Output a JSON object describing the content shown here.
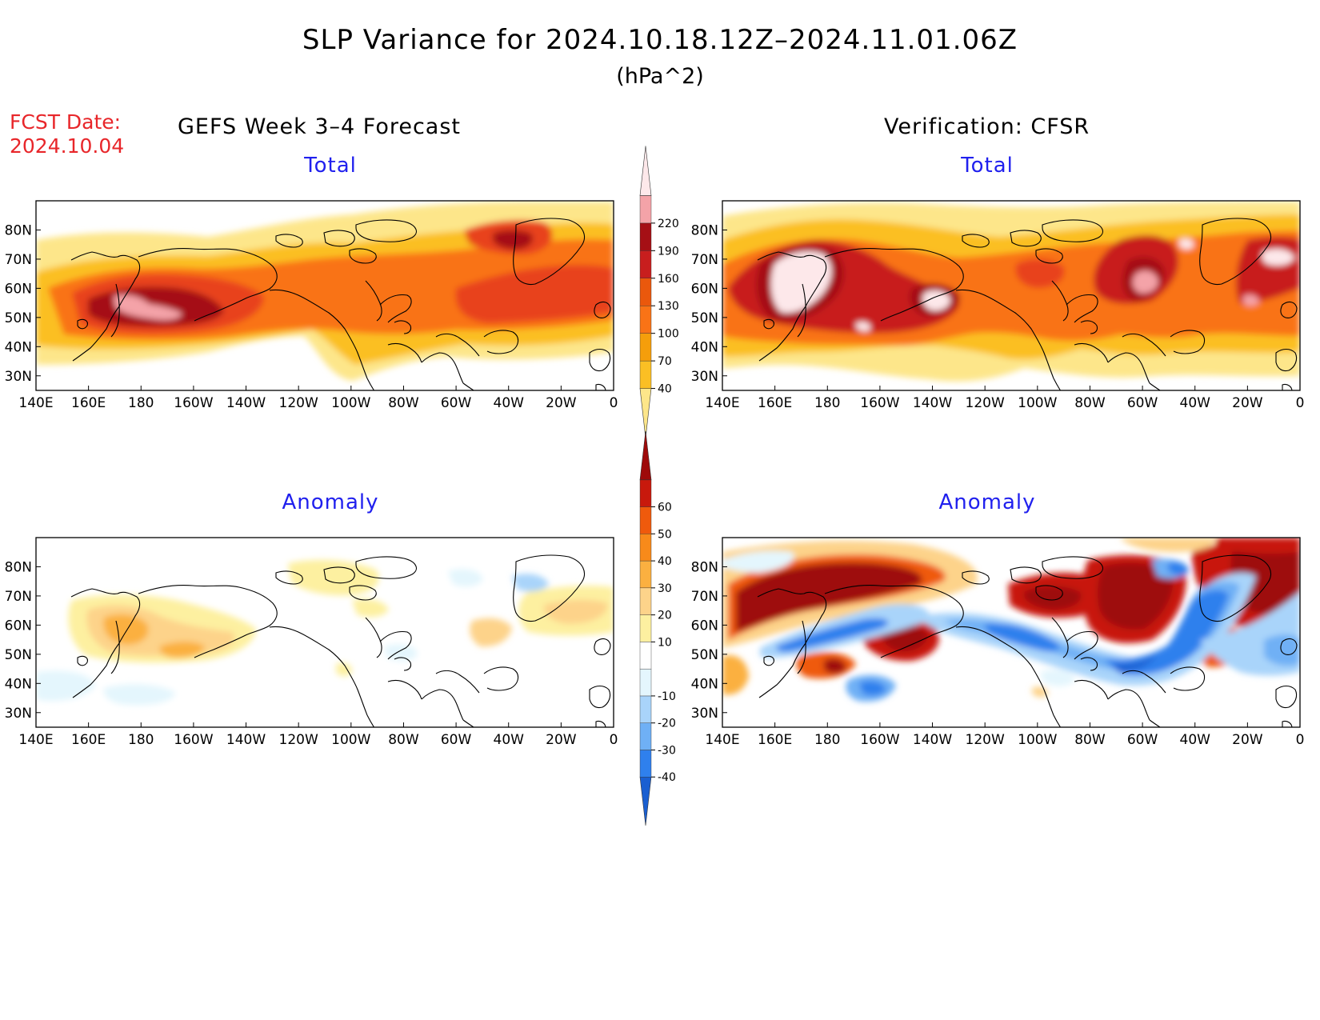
{
  "title": "SLP Variance for 2024.10.18.12Z–2024.11.01.06Z",
  "subtitle": "(hPa^2)",
  "fcst_label": "FCST Date:",
  "fcst_date": "2024.10.04",
  "left_heading": "GEFS Week 3–4 Forecast",
  "right_heading": "Verification: CFSR",
  "panels": [
    {
      "id": "gefs-total",
      "title": "Total",
      "field": "total",
      "source": "GEFS Week 3–4 Forecast"
    },
    {
      "id": "cfsr-total",
      "title": "Total",
      "field": "total",
      "source": "Verification: CFSR"
    },
    {
      "id": "gefs-anomaly",
      "title": "Anomaly",
      "field": "anomaly",
      "source": "GEFS Week 3–4 Forecast"
    },
    {
      "id": "cfsr-anomaly",
      "title": "Anomaly",
      "field": "anomaly",
      "source": "Verification: CFSR"
    }
  ],
  "axes": {
    "lon_labels": [
      "140E",
      "160E",
      "180",
      "160W",
      "140W",
      "120W",
      "100W",
      "80W",
      "60W",
      "40W",
      "20W",
      "0"
    ],
    "lat_labels": [
      "80N",
      "70N",
      "60N",
      "50N",
      "40N",
      "30N"
    ]
  },
  "colorbars": {
    "total": {
      "levels": [
        "40",
        "70",
        "100",
        "130",
        "160",
        "190",
        "220"
      ],
      "colors": [
        "#fde68a",
        "#fbbf24",
        "#f59e0b",
        "#f97316",
        "#ea580c",
        "#c81e1e",
        "#a50f15",
        "#f4a3a8",
        "#fde8ea"
      ]
    },
    "anomaly": {
      "levels": [
        "-40",
        "-30",
        "-20",
        "-10",
        "10",
        "20",
        "30",
        "40",
        "50",
        "60"
      ],
      "colors": [
        "#1a5fd1",
        "#2f80ed",
        "#6fb0f5",
        "#a9d4fa",
        "#e4f6fd",
        "#ffffff",
        "#fdf0a0",
        "#fdd38a",
        "#fbb040",
        "#f88a1a",
        "#ef5a0c",
        "#c8190c",
        "#9e0a0a"
      ]
    }
  }
}
